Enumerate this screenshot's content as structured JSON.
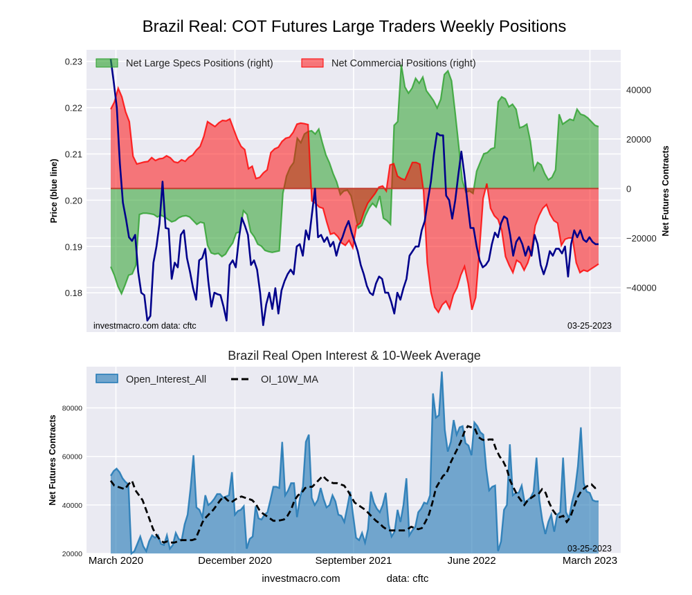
{
  "figure_title": "Brazil Real: COT Futures Large Traders Weekly Positions",
  "footer": {
    "site": "investmacro.com",
    "source": "data: cftc"
  },
  "chart_data": [
    {
      "type": "area",
      "title": "Brazil Real: COT Futures Large Traders Weekly Positions",
      "ylabel_left": "Price (blue line)",
      "ylabel_right": "Net Futures Contracts",
      "ylim_left": [
        0.1715,
        0.2325
      ],
      "ylim_right": [
        -58000,
        56000
      ],
      "yticks_left": [
        "0.18",
        "0.19",
        "0.20",
        "0.21",
        "0.22",
        "0.23"
      ],
      "yticks_left_values": [
        0.18,
        0.19,
        0.2,
        0.21,
        0.22,
        0.23
      ],
      "yticks_right": [
        "−40000",
        "−20000",
        "0",
        "20000",
        "40000"
      ],
      "yticks_right_values": [
        -40000,
        -20000,
        0,
        20000,
        40000
      ],
      "grid": true,
      "legend": "top",
      "annotation_left": "investmacro.com    data: cftc",
      "annotation_right": "03-25-2023",
      "x_start": "2020-02-18",
      "x_end": "2023-03-21",
      "x_frequency": "weekly",
      "series": [
        {
          "name": "Net Large Specs Positions (right)",
          "kind": "fill",
          "axis": "right",
          "color": "#2ca02c",
          "values": [
            -31600,
            -35000,
            -39500,
            -42500,
            -39000,
            -35000,
            -34500,
            -31000,
            -10500,
            -10000,
            -10000,
            -10200,
            -10500,
            -11500,
            -10800,
            -11500,
            -12500,
            -13500,
            -13000,
            -11800,
            -11200,
            -11000,
            -11500,
            -13000,
            -14500,
            -13600,
            -14000,
            -23000,
            -26000,
            -26500,
            -26200,
            -27500,
            -26500,
            -24000,
            -22000,
            -18000,
            -17500,
            -9000,
            -10500,
            -17500,
            -19500,
            -22500,
            -23300,
            -25000,
            -25500,
            -25800,
            -25500,
            -25200,
            -2000,
            5000,
            8500,
            10500,
            20300,
            18500,
            22000,
            23000,
            23300,
            22000,
            24000,
            18500,
            13500,
            10300,
            6000,
            2600,
            -2500,
            -1000,
            -700,
            -3000,
            -9500,
            -16000,
            -15000,
            -11000,
            -8000,
            -6000,
            -7500,
            -3000,
            -12000,
            -13000,
            -14500,
            25500,
            27000,
            50000,
            41000,
            38500,
            40500,
            44500,
            42500,
            45000,
            39500,
            37500,
            35500,
            32500,
            36000,
            46000,
            47500,
            43500,
            31000,
            17500,
            3500,
            -1500,
            -1000,
            -2000,
            7000,
            10500,
            14000,
            14500,
            16000,
            16500,
            35000,
            37000,
            36200,
            33000,
            34000,
            32000,
            24500,
            25000,
            26000,
            19000,
            7500,
            10500,
            9500,
            6000,
            3500,
            4500,
            7500,
            30000,
            26000,
            27000,
            28000,
            27500,
            32000,
            30000,
            29500,
            28500,
            27000,
            25500,
            25000
          ],
          "value_format": "contracts"
        },
        {
          "name": "Net Commercial Positions (right)",
          "kind": "fill",
          "axis": "right",
          "color": "#ff0000",
          "values": [
            32000,
            35000,
            40500,
            37000,
            31000,
            27000,
            13000,
            9900,
            10300,
            10700,
            10900,
            12500,
            11300,
            12000,
            12200,
            13200,
            12400,
            10800,
            10400,
            11600,
            11000,
            12600,
            13500,
            15500,
            17000,
            21000,
            27000,
            26000,
            25000,
            26500,
            27500,
            27300,
            28100,
            24000,
            20000,
            17000,
            15700,
            8000,
            9000,
            4000,
            4500,
            6300,
            7500,
            14500,
            16000,
            16700,
            19000,
            20300,
            20700,
            22700,
            26000,
            26400,
            26200,
            25800,
            -5000,
            -6000,
            -7500,
            -8000,
            -13500,
            -18500,
            -18000,
            -19500,
            -22000,
            -23000,
            -21000,
            -24000,
            -15000,
            -14000,
            -9500,
            -6000,
            -4000,
            -2000,
            500,
            1000,
            -1000,
            9500,
            10000,
            5000,
            4000,
            3500,
            7000,
            10500,
            10500,
            9800,
            -1000,
            -30000,
            -42000,
            -48000,
            -50000,
            -47000,
            -45500,
            -48500,
            -43000,
            -40000,
            -35000,
            -31500,
            -38500,
            -49000,
            -44000,
            -25000,
            -4000,
            2000,
            -8000,
            -11000,
            -12500,
            -17000,
            -27500,
            -31000,
            -34000,
            -29000,
            -30000,
            -33000,
            -30000,
            -25000,
            -15000,
            -11000,
            -8000,
            -6500,
            -10500,
            -13000,
            -14000,
            -23000,
            -20500,
            -20000,
            -20000,
            -30000,
            -34000,
            -33000,
            -33500,
            -32500,
            -31500,
            -30500
          ],
          "value_format": "contracts"
        },
        {
          "name": "Price (blue line)",
          "kind": "line",
          "axis": "left",
          "color": "#00008b",
          "values": [
            0.2305,
            0.2255,
            0.22,
            0.208,
            0.1995,
            0.196,
            0.192,
            0.1912,
            0.1925,
            0.1845,
            0.18,
            0.1795,
            0.174,
            0.175,
            0.1865,
            0.19,
            0.195,
            0.204,
            0.194,
            0.1938,
            0.183,
            0.1865,
            0.1855,
            0.1925,
            0.1935,
            0.1875,
            0.1845,
            0.181,
            0.1785,
            0.187,
            0.1875,
            0.1895,
            0.1825,
            0.177,
            0.18,
            0.1797,
            0.1795,
            0.177,
            0.174,
            0.186,
            0.187,
            0.1855,
            0.1915,
            0.1962,
            0.1945,
            0.1925,
            0.186,
            0.187,
            0.185,
            0.18,
            0.173,
            0.1775,
            0.18,
            0.1765,
            0.181,
            0.1755,
            0.1805,
            0.1825,
            0.184,
            0.185,
            0.184,
            0.19,
            0.1905,
            0.188,
            0.1935,
            0.1915,
            0.197,
            0.2025,
            0.192,
            0.1925,
            0.191,
            0.192,
            0.19,
            0.191,
            0.188,
            0.1905,
            0.192,
            0.194,
            0.1955,
            0.193,
            0.191,
            0.189,
            0.186,
            0.184,
            0.1815,
            0.18,
            0.1795,
            0.182,
            0.1835,
            0.183,
            0.18,
            0.18,
            0.178,
            0.1755,
            0.18,
            0.1785,
            0.181,
            0.183,
            0.188,
            0.189,
            0.19,
            0.19,
            0.1935,
            0.1955,
            0.2,
            0.204,
            0.21,
            0.2145,
            0.214,
            0.214,
            0.201,
            0.2,
            0.196,
            0.2,
            0.2055,
            0.2105,
            0.2055,
            0.1995,
            0.194,
            0.194,
            0.19,
            0.187,
            0.1855,
            0.186,
            0.187,
            0.1905,
            0.193,
            0.192,
            0.195,
            0.1965,
            0.196,
            0.1925,
            0.188,
            0.191,
            0.192,
            0.1905,
            0.188,
            0.19,
            0.188,
            0.1925,
            0.1905,
            0.186,
            0.184,
            0.186,
            0.189,
            0.188,
            0.1895,
            0.1895,
            0.1885,
            0.19,
            0.1835,
            0.1905,
            0.1935,
            0.192,
            0.1935,
            0.1915,
            0.191,
            0.192,
            0.191,
            0.1905,
            0.1905
          ],
          "value_format": "price"
        }
      ]
    },
    {
      "type": "area",
      "title": "Brazil Real Open Interest & 10-Week Average",
      "ylabel": "Net Futures Contracts",
      "ylim": [
        20000,
        97000
      ],
      "yticks": [
        "20000",
        "40000",
        "60000",
        "80000"
      ],
      "yticks_values": [
        20000,
        40000,
        60000,
        80000
      ],
      "xticks": [
        "March 2020",
        "December 2020",
        "September 2021",
        "June 2022",
        "March 2023"
      ],
      "xticks_dates": [
        "2020-03-01",
        "2020-12-01",
        "2021-09-01",
        "2022-06-01",
        "2023-03-01"
      ],
      "grid": true,
      "legend": "top-left",
      "annotation_right": "03-25-2023",
      "x_start": "2020-02-18",
      "x_end": "2023-03-21",
      "x_frequency": "weekly",
      "series": [
        {
          "name": "Open_Interest_All",
          "kind": "fill",
          "color": "#1f77b4",
          "values": [
            52000,
            54000,
            55000,
            53500,
            51000,
            49500,
            48500,
            20000,
            21000,
            24000,
            27000,
            23000,
            21000,
            25000,
            27500,
            26500,
            27500,
            24000,
            23500,
            27500,
            22000,
            23500,
            28500,
            26000,
            25500,
            32000,
            36000,
            47000,
            60500,
            39000,
            38000,
            35000,
            44000,
            40000,
            41000,
            42500,
            44500,
            44500,
            43000,
            43500,
            44000,
            53500,
            36000,
            37500,
            38000,
            39500,
            22000,
            26000,
            27000,
            39500,
            34500,
            34000,
            36000,
            37000,
            42000,
            47500,
            47500,
            47000,
            66000,
            44000,
            46000,
            49000,
            49000,
            35000,
            43000,
            47500,
            66000,
            69000,
            43000,
            40000,
            42000,
            47000,
            42500,
            39000,
            40000,
            44000,
            41500,
            36000,
            35500,
            33000,
            39000,
            45500,
            35500,
            26500,
            25500,
            28500,
            24500,
            30000,
            45500,
            41000,
            38500,
            37000,
            40000,
            45000,
            32000,
            27000,
            29000,
            38000,
            33000,
            40000,
            51000,
            27500,
            29500,
            31000,
            37000,
            38500,
            41000,
            40500,
            44000,
            86000,
            76000,
            77000,
            95000,
            71000,
            62000,
            66000,
            75000,
            69000,
            72000,
            72500,
            65500,
            64500,
            60500,
            74000,
            72500,
            70000,
            69000,
            55000,
            46000,
            47500,
            48000,
            21000,
            25000,
            38000,
            40000,
            65000,
            44000,
            45000,
            45000,
            48000,
            41000,
            42000,
            43000,
            45500,
            59500,
            42000,
            33500,
            28000,
            33000,
            36000,
            29000,
            36000,
            37000,
            59500,
            37000,
            34500,
            41000,
            46000,
            56000,
            72000,
            49000,
            45500,
            45000,
            42000,
            41500,
            41500
          ],
          "value_format": "contracts"
        },
        {
          "name": "OI_10W_MA",
          "kind": "dashed-line",
          "color": "#000000",
          "values": [
            50000,
            48000,
            47500,
            47000,
            46500,
            48500,
            50000,
            46000,
            44000,
            42000,
            38000,
            34000,
            30000,
            27500,
            25500,
            24500,
            25000,
            24500,
            24500,
            25000,
            25500,
            25500,
            25500,
            25500,
            26000,
            29500,
            33000,
            35000,
            36500,
            38000,
            40000,
            42000,
            43500,
            42000,
            41000,
            42000,
            43000,
            43500,
            43000,
            42500,
            42000,
            40500,
            38000,
            36500,
            35500,
            34500,
            33500,
            33500,
            33700,
            34000,
            35500,
            38000,
            42000,
            44000,
            45000,
            47000,
            47500,
            47500,
            49000,
            50500,
            52000,
            50500,
            49500,
            49000,
            49000,
            48500,
            48000,
            46000,
            43500,
            41000,
            40000,
            39000,
            38000,
            36500,
            35000,
            33500,
            32500,
            31000,
            30000,
            29500,
            29500,
            29500,
            29500,
            29500,
            30000,
            31000,
            30500,
            30000,
            30500,
            33000,
            36000,
            41000,
            47000,
            49500,
            52000,
            53000,
            57000,
            60000,
            63000,
            66000,
            70000,
            72500,
            72000,
            71500,
            68000,
            67000,
            66500,
            67000,
            67000,
            63000,
            60000,
            58000,
            55000,
            50000,
            47000,
            44000,
            42000,
            40000,
            42000,
            43000,
            44000,
            44500,
            46500,
            45000,
            41000,
            38000,
            36000,
            35000,
            35500,
            33000,
            35000,
            39000,
            43000,
            45500,
            47000,
            48000,
            48500,
            47000,
            47500
          ],
          "value_format": "contracts"
        }
      ]
    }
  ]
}
